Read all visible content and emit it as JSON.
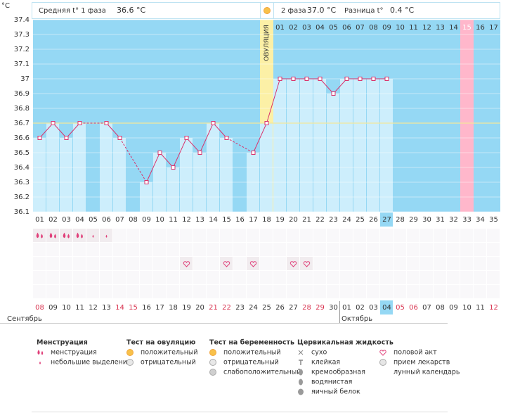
{
  "header": {
    "unit": "°C",
    "phase1_label": "Средняя t° 1 фаза",
    "phase1_value": "36.6 °C",
    "phase2_label": "2 фаза",
    "phase2_value": "37.0 °C",
    "difference_label": "Разница t°",
    "difference_value": "0.4 °C"
  },
  "chart_data": {
    "type": "line",
    "categories": [
      "01",
      "02",
      "03",
      "04",
      "05",
      "06",
      "07",
      "08",
      "09",
      "10",
      "11",
      "12",
      "13",
      "14",
      "15",
      "16",
      "17",
      "18",
      "19",
      "20",
      "21",
      "22",
      "23",
      "24",
      "25",
      "26",
      "27",
      "28",
      "29",
      "30",
      "31",
      "32",
      "33",
      "34",
      "35"
    ],
    "values": [
      36.6,
      36.7,
      36.6,
      36.7,
      null,
      36.7,
      36.6,
      null,
      36.3,
      36.5,
      36.4,
      36.6,
      36.5,
      36.7,
      36.6,
      null,
      36.5,
      36.7,
      37,
      37,
      37,
      37,
      36.9,
      37,
      37,
      37,
      37,
      null,
      null,
      null,
      null,
      null,
      null,
      null,
      null
    ],
    "color": "#d9336c",
    "bar_color": "#cdeefc",
    "background": "#95d8f4",
    "ylim": [
      36.1,
      37.4
    ],
    "yticks": [
      36.1,
      36.2,
      36.3,
      36.4,
      36.5,
      36.6,
      36.7,
      36.8,
      36.9,
      37,
      37.1,
      37.2,
      37.3,
      37.4
    ],
    "grid": true,
    "coverline": 36.7,
    "ovulation_day": "18",
    "ovulation_label": "ОВУЛЯЦИЯ",
    "luteal_days": [
      null,
      null,
      null,
      null,
      null,
      null,
      null,
      null,
      null,
      null,
      null,
      null,
      null,
      null,
      null,
      null,
      null,
      null,
      "01",
      "02",
      "03",
      "04",
      "05",
      "06",
      "07",
      "08",
      "09",
      "10",
      "11",
      "12",
      "13",
      "14",
      "15",
      "16",
      "17"
    ],
    "expected_period_day": "33",
    "today": "27",
    "menstruation": [
      "heavy",
      "heavy",
      "heavy",
      "heavy",
      "light",
      "light",
      null,
      null,
      null,
      null,
      null,
      null,
      null,
      null,
      null,
      null,
      null,
      null,
      null,
      null,
      null,
      null,
      null,
      null,
      null,
      null,
      null,
      null,
      null,
      null,
      null,
      null,
      null,
      null,
      null
    ],
    "intercourse_days": [
      "12",
      "15",
      "17",
      "20",
      "21"
    ],
    "dates": [
      "08",
      "09",
      "10",
      "11",
      "12",
      "13",
      "14",
      "15",
      "16",
      "17",
      "18",
      "19",
      "20",
      "21",
      "22",
      "23",
      "24",
      "25",
      "26",
      "27",
      "28",
      "29",
      "30",
      "01",
      "02",
      "03",
      "04",
      "05",
      "06",
      "07",
      "08",
      "09",
      "10",
      "11",
      "12"
    ],
    "weekend": [
      true,
      false,
      false,
      false,
      false,
      false,
      true,
      true,
      false,
      false,
      false,
      false,
      false,
      true,
      true,
      false,
      false,
      false,
      false,
      false,
      true,
      true,
      false,
      false,
      false,
      false,
      false,
      true,
      true,
      false,
      false,
      false,
      false,
      false,
      true
    ],
    "months": [
      "Сентябрь",
      "Октябрь"
    ]
  },
  "legend": [
    {
      "title": "Менструация",
      "items": [
        "менструация",
        "небольшие выделения"
      ]
    },
    {
      "title": "Тест на овуляцию",
      "items": [
        "положительный",
        "отрицательный"
      ]
    },
    {
      "title": "Тест на беременность",
      "items": [
        "положительный",
        "отрицательный",
        "слабоположительный"
      ]
    },
    {
      "title": "Цервикальная жидкость",
      "items": [
        "сухо",
        "клейкая",
        "кремообразная",
        "водянистая",
        "яичный белок"
      ]
    },
    {
      "items": [
        "половой акт",
        "прием лекарств",
        "лунный календарь"
      ]
    }
  ]
}
